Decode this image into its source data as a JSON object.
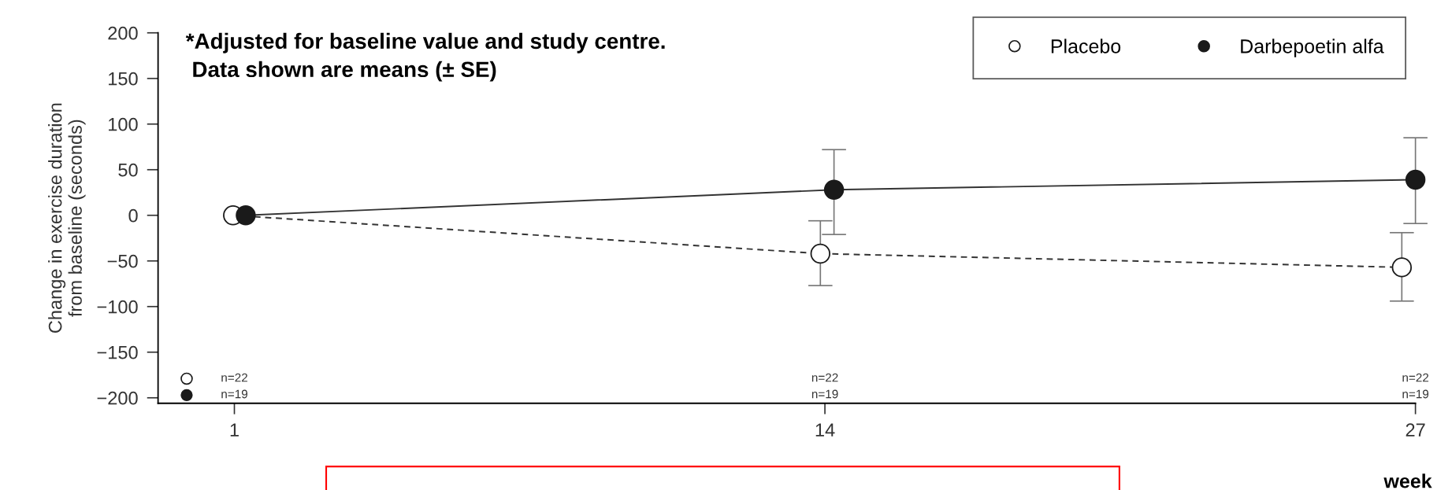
{
  "chart_data": {
    "type": "line",
    "ylabel": "Change in exercise duration\nfrom baseline (seconds)",
    "xlabel": "week",
    "xlim": [
      -0.68,
      27
    ],
    "xticks": [
      1,
      14,
      27
    ],
    "ylim": [
      -206,
      200
    ],
    "yticks": [
      200,
      150,
      100,
      50,
      0,
      {
        "value": -50,
        "label": "−50"
      },
      {
        "value": -100,
        "label": "−100"
      },
      {
        "value": -150,
        "label": "−150"
      },
      {
        "value": -200,
        "label": "−200"
      }
    ],
    "grid": false,
    "legend": "top right",
    "marker": "circle",
    "series": [
      {
        "name": "Placebo",
        "color": "#ffffff",
        "line_style": "dashed",
        "x": [
          0.97,
          13.9,
          26.7
        ],
        "values": [
          0,
          -42,
          -57
        ],
        "errors": [
          null,
          [
            -77,
            -6
          ],
          [
            -94,
            -19
          ]
        ]
      },
      {
        "name": "Darbepoetin alfa",
        "color": "#1a1a1a",
        "line_style": "solid",
        "x": [
          1.25,
          14.2,
          27
        ],
        "values": [
          0,
          28,
          39
        ],
        "errors": [
          null,
          [
            -21,
            72
          ],
          [
            -9,
            85
          ]
        ]
      }
    ],
    "annotations": [
      "*Adjusted for baseline value and study centre.\n Data shown are means (± SE)",
      "n=22",
      "n=19",
      "n=22",
      "n=19",
      "n=22",
      "n=19"
    ]
  }
}
